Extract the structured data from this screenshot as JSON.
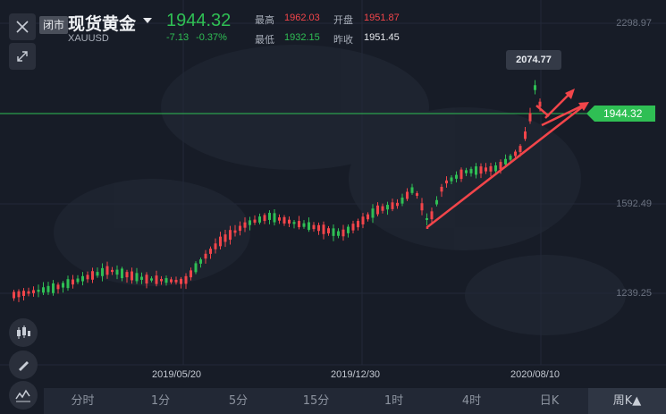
{
  "header": {
    "badge": "闭市",
    "title": "现货黄金",
    "symbol": "XAUUSD",
    "price": "1944.32",
    "change_abs": "-7.13",
    "change_pct": "-0.37%",
    "high_label": "最高",
    "high_value": "1962.03",
    "low_label": "最低",
    "low_value": "1932.15",
    "open_label": "开盘",
    "open_value": "1951.87",
    "prev_close_label": "昨收",
    "prev_close_value": "1951.45"
  },
  "axis": {
    "y_ticks": [
      "2298.97",
      "1592.49",
      "1239.25"
    ],
    "x_ticks": [
      "2019/05/20",
      "2019/12/30",
      "2020/08/10"
    ]
  },
  "chart": {
    "tooltip_value": "2074.77",
    "current_price_tag": "1944.32"
  },
  "tabs": [
    {
      "label": "分时"
    },
    {
      "label": "1分"
    },
    {
      "label": "5分"
    },
    {
      "label": "15分"
    },
    {
      "label": "1时"
    },
    {
      "label": "4时"
    },
    {
      "label": "日K"
    },
    {
      "label": "周K▲"
    }
  ],
  "colors": {
    "up": "#f2454a",
    "down": "#2fbf54",
    "background": "#171c27"
  },
  "icons": [
    "close-icon",
    "expand-icon",
    "candlestick-icon",
    "pen-icon",
    "indicator-icon"
  ]
}
